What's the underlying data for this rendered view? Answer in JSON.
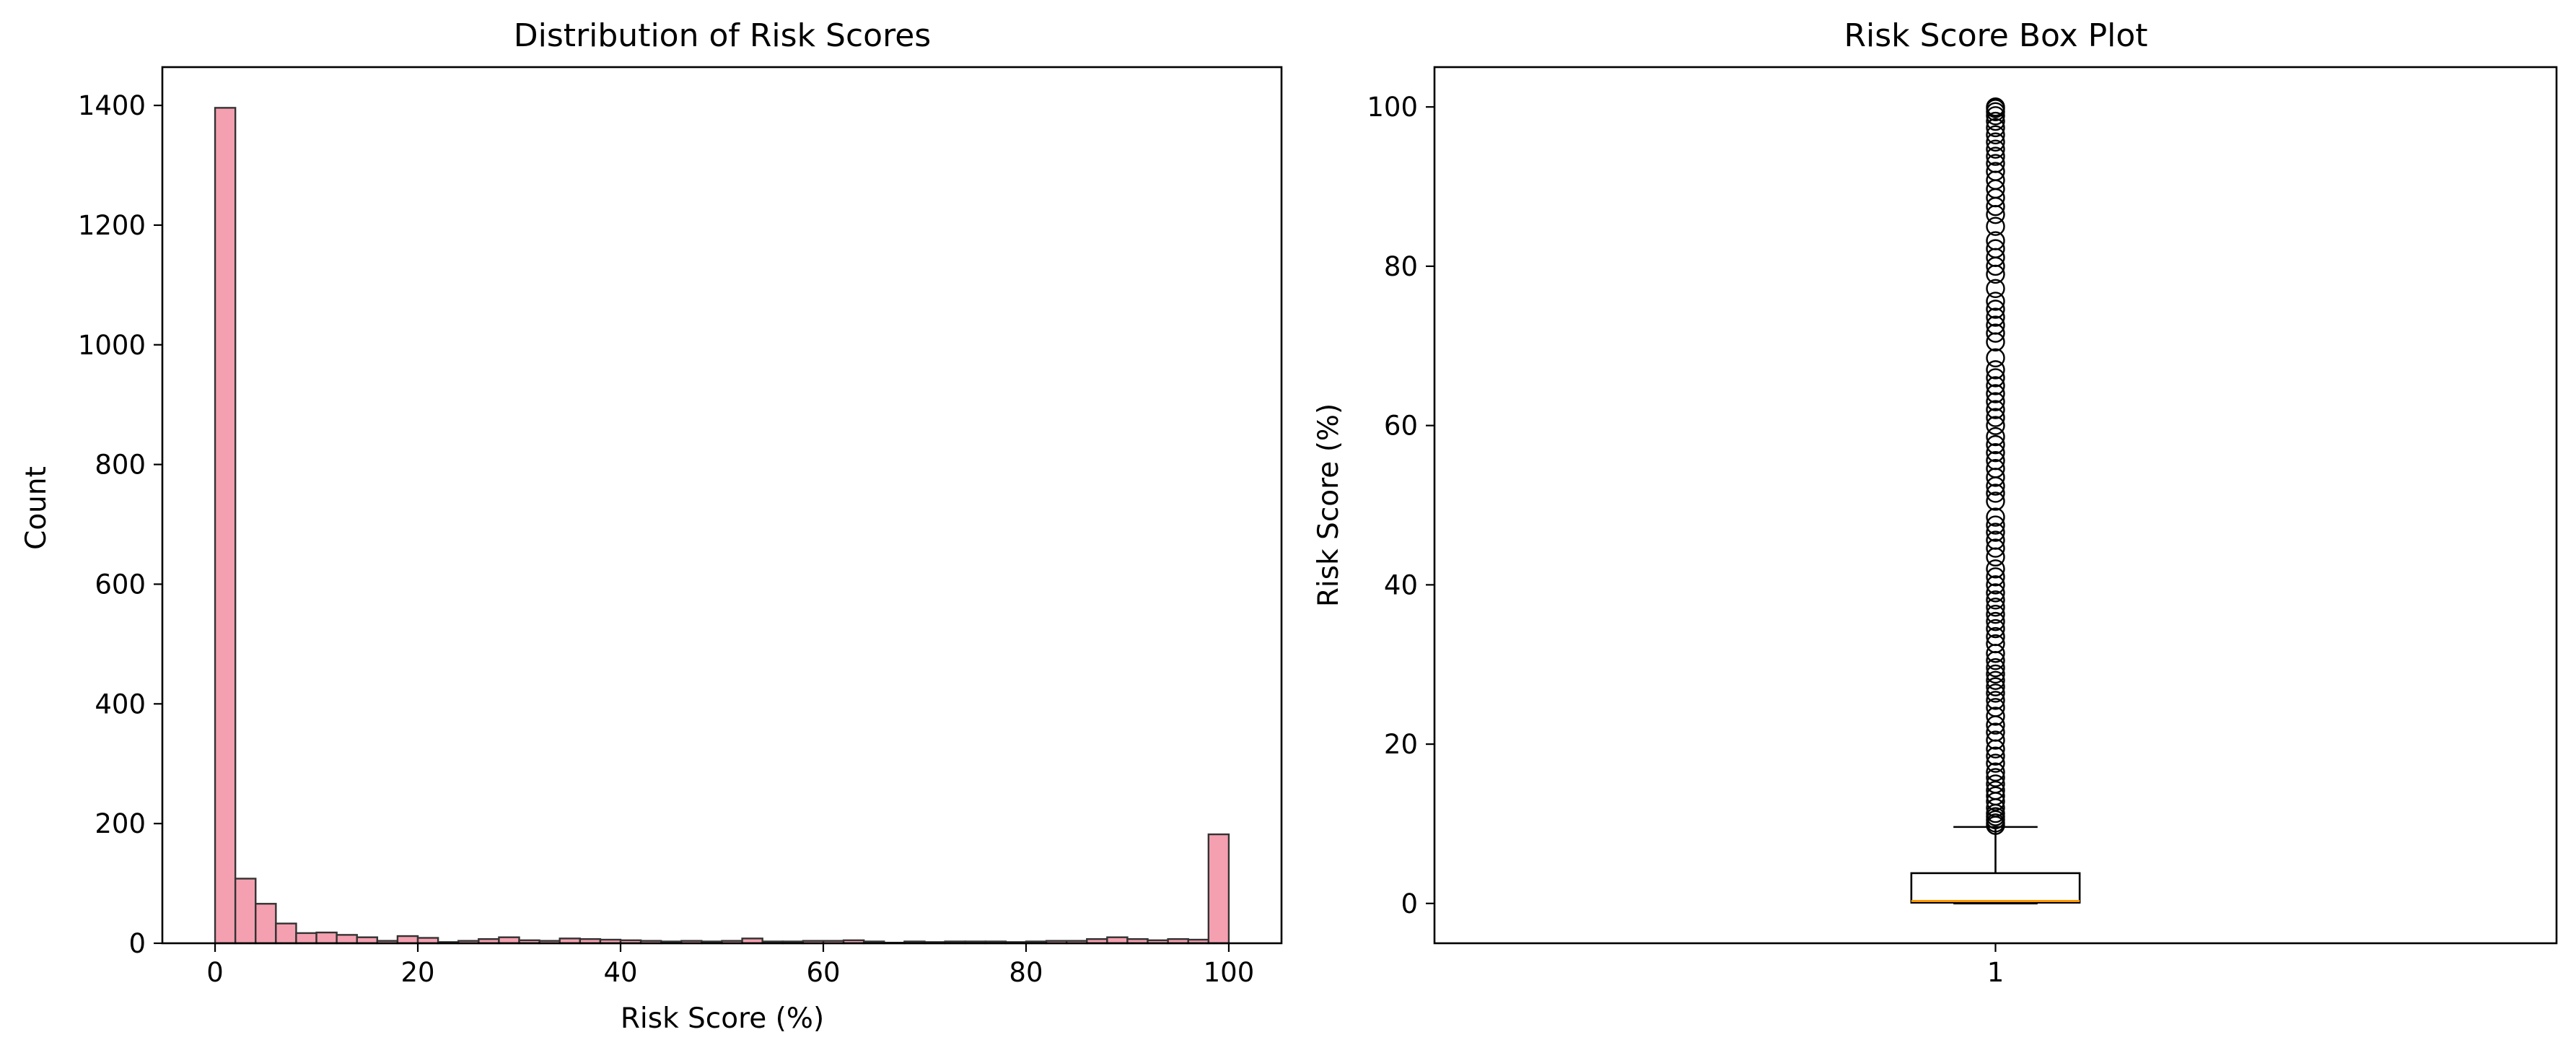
{
  "chart_data": [
    {
      "type": "bar",
      "title": "Distribution of Risk Scores",
      "xlabel": "Risk Score (%)",
      "ylabel": "Count",
      "xlim": [
        -5.2,
        105.2
      ],
      "ylim": [
        0,
        1464
      ],
      "grid": false,
      "bar_color": "#f4a0b0",
      "edge_color": "#333333",
      "bin_width": 2,
      "bin_start": 0,
      "values": [
        1396,
        108,
        66,
        33,
        17,
        18,
        14,
        10,
        4,
        12,
        9,
        2,
        4,
        7,
        10,
        5,
        4,
        8,
        7,
        6,
        5,
        4,
        3,
        4,
        3,
        4,
        8,
        3,
        3,
        4,
        4,
        5,
        3,
        1,
        3,
        2,
        3,
        3,
        3,
        2,
        3,
        4,
        4,
        7,
        10,
        7,
        5,
        7,
        6,
        182
      ],
      "x_ticks": [
        0,
        20,
        40,
        60,
        80,
        100
      ],
      "x_tick_labels": [
        "0",
        "20",
        "40",
        "60",
        "80",
        "100"
      ],
      "y_ticks": [
        0,
        200,
        400,
        600,
        800,
        1000,
        1200,
        1400
      ],
      "y_tick_labels": [
        "0",
        "200",
        "400",
        "600",
        "800",
        "1000",
        "1200",
        "1400"
      ]
    },
    {
      "type": "box",
      "title": "Risk Score Box Plot",
      "ylabel": "Risk Score (%)",
      "xlabel": "",
      "xlim": [
        0.5,
        1.5
      ],
      "ylim": [
        -5,
        105
      ],
      "grid": false,
      "median_color": "#ff9900",
      "category_labels": [
        "1"
      ],
      "x_ticks": [
        1
      ],
      "y_ticks": [
        0,
        20,
        40,
        60,
        80,
        100
      ],
      "y_tick_labels": [
        "0",
        "20",
        "40",
        "60",
        "80",
        "100"
      ],
      "box": {
        "position": 1,
        "whislo": 0,
        "q1": 0.1,
        "median": 0.3,
        "q3": 3.8,
        "whishi": 9.6,
        "fliers": [
          9.8,
          10.1,
          10.5,
          10.9,
          11.3,
          12,
          12.8,
          13.5,
          14.2,
          15,
          15.8,
          16.5,
          17.6,
          18.5,
          19.4,
          20.5,
          21.5,
          22.4,
          23.5,
          24.6,
          25.5,
          26.4,
          27.2,
          28,
          28.8,
          29.6,
          30.5,
          31.4,
          32.6,
          33.5,
          34.5,
          35.4,
          36.3,
          37.2,
          38.1,
          39,
          40,
          41,
          42,
          43.5,
          44.6,
          45.6,
          46.6,
          47.5,
          48.5,
          50.5,
          51.5,
          52.4,
          53.5,
          54.6,
          55.6,
          56.6,
          57.6,
          58.6,
          60,
          61,
          62,
          63,
          64,
          65,
          66,
          67,
          68.5,
          70.5,
          71.6,
          72.6,
          73.6,
          74.6,
          75.6,
          77.2,
          79,
          80,
          81.1,
          82.2,
          83.2,
          85,
          86.5,
          87.5,
          88.6,
          89.7,
          90.8,
          91.9,
          92.9,
          93.8,
          94.7,
          95.6,
          96.5,
          97.4,
          98.2,
          98.9,
          99.4,
          99.8,
          100
        ]
      }
    }
  ]
}
